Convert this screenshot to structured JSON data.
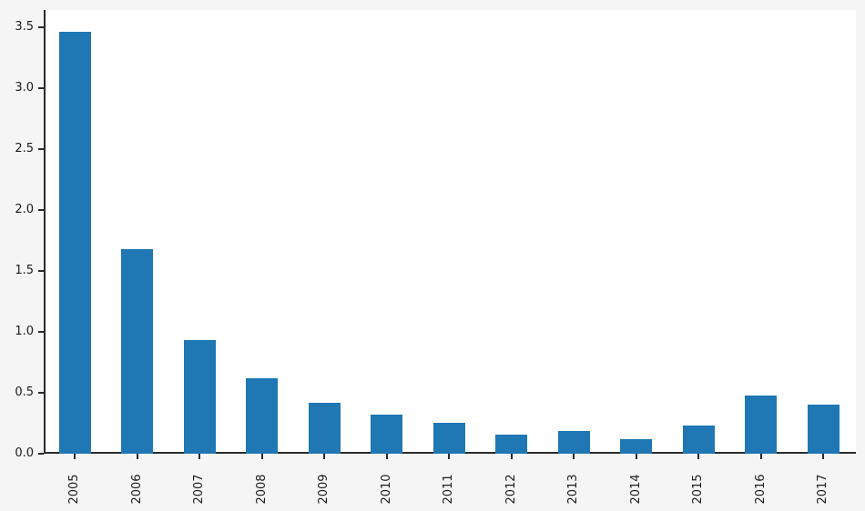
{
  "chart_data": {
    "type": "bar",
    "title": "",
    "xlabel": "",
    "ylabel": "",
    "categories": [
      "2005",
      "2006",
      "2007",
      "2008",
      "2009",
      "2010",
      "2011",
      "2012",
      "2013",
      "2014",
      "2015",
      "2016",
      "2017"
    ],
    "values": [
      3.46,
      1.68,
      0.93,
      0.62,
      0.42,
      0.32,
      0.25,
      0.16,
      0.19,
      0.12,
      0.23,
      0.48,
      0.4
    ],
    "ylim": [
      0,
      3.64
    ],
    "yticks": [
      "0.0",
      "0.5",
      "1.0",
      "1.5",
      "2.0",
      "2.5",
      "3.0",
      "3.5"
    ],
    "ytick_values": [
      0.0,
      0.5,
      1.0,
      1.5,
      2.0,
      2.5,
      3.0,
      3.5
    ],
    "xtick_rotation": 90,
    "grid": false,
    "legend": null
  },
  "colors": {
    "figure_bg": "#f5f5f5",
    "axes_bg": "#ffffff",
    "spine": "#2a2a2a",
    "tick_mark": "#2a2a2a",
    "tick_label": "#1a1a1a",
    "bar": "#1f77b4"
  }
}
